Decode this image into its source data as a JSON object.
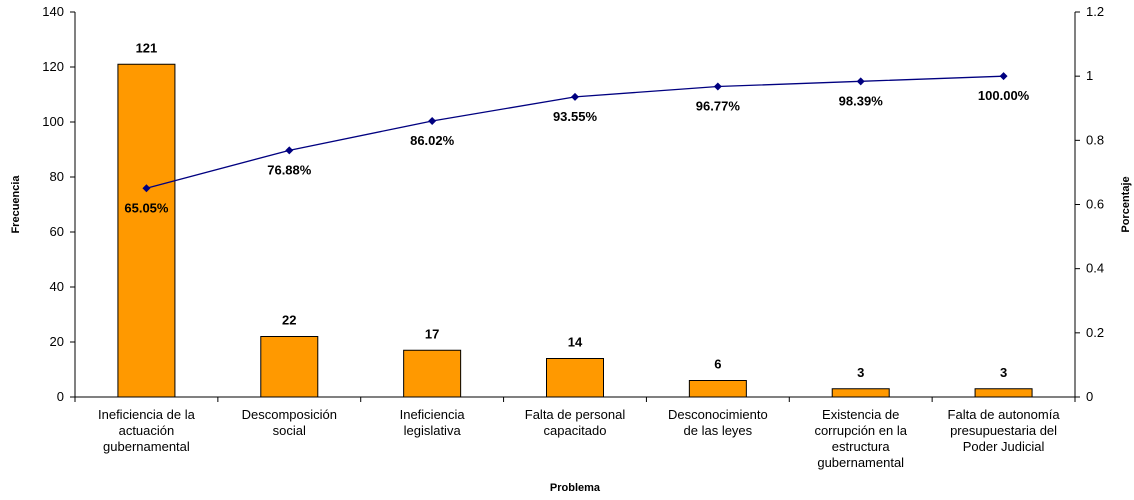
{
  "chart_data": {
    "type": "bar",
    "xlabel": "Problema",
    "ylabel": "Frecuencia",
    "y2label": "Porcentaje",
    "ylim": [
      0,
      140
    ],
    "y2lim": [
      0,
      1.2
    ],
    "yticks": [
      "0",
      "20",
      "40",
      "60",
      "80",
      "100",
      "120",
      "140"
    ],
    "y2ticks": [
      "0",
      "0.2",
      "0.4",
      "0.6",
      "0.8",
      "1",
      "1.2"
    ],
    "grid": false,
    "legend": "none",
    "categories": [
      [
        "Ineficiencia de la",
        "actuación",
        "gubernamental"
      ],
      [
        "Descomposición",
        "social"
      ],
      [
        "Ineficiencia",
        "legislativa"
      ],
      [
        "Falta de personal",
        "capacitado"
      ],
      [
        "Desconocimiento",
        "de las leyes"
      ],
      [
        "Existencia de",
        "corrupción en la",
        "estructura",
        "gubernamental"
      ],
      [
        "Falta de autonomía",
        "presupuestaria del",
        "Poder Judicial"
      ]
    ],
    "bar_labels": [
      "121",
      "22",
      "17",
      "14",
      "6",
      "3",
      "3"
    ],
    "series": [
      {
        "type": "bar",
        "axis": "left",
        "values": [
          121,
          22,
          17,
          14,
          6,
          3,
          3
        ]
      },
      {
        "type": "line",
        "axis": "right",
        "values": [
          0.6505,
          0.7688,
          0.8602,
          0.9355,
          0.9677,
          0.9839,
          1.0
        ],
        "labels": [
          "65.05%",
          "76.88%",
          "86.02%",
          "93.55%",
          "96.77%",
          "98.39%",
          "100.00%"
        ]
      }
    ],
    "colors": {
      "bar": "#FF9900",
      "bar_stroke": "#000000",
      "line": "#000080"
    }
  }
}
